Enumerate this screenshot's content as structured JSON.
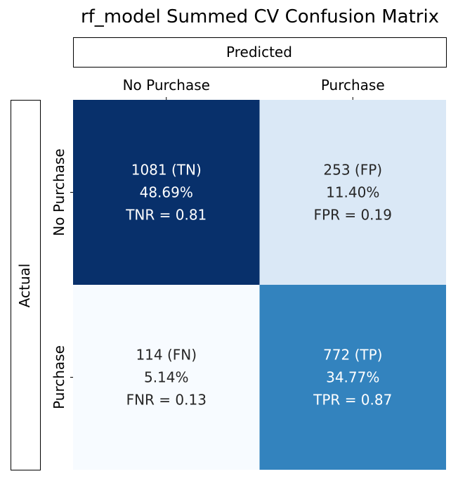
{
  "chart_data": {
    "type": "heatmap",
    "title": "rf_model Summed CV Confusion Matrix",
    "xlabel": "Predicted",
    "ylabel": "Actual",
    "x_categories": [
      "No Purchase",
      "Purchase"
    ],
    "y_categories": [
      "No Purchase",
      "Purchase"
    ],
    "values": [
      [
        1081,
        253
      ],
      [
        114,
        772
      ]
    ],
    "cell_labels": [
      [
        [
          "1081 (TN)",
          "48.69%",
          "TNR = 0.81"
        ],
        [
          "253 (FP)",
          "11.40%",
          "FPR = 0.19"
        ]
      ],
      [
        [
          "114 (FN)",
          "5.14%",
          "FNR = 0.13"
        ],
        [
          "772 (TP)",
          "34.77%",
          "TPR = 0.87"
        ]
      ]
    ],
    "colormap": "Blues",
    "colorbar": false,
    "cell_colors": [
      [
        "#08306b",
        "#dae8f6"
      ],
      [
        "#f7fbff",
        "#3383be"
      ]
    ],
    "text_colors": [
      [
        "#ffffff",
        "#262626"
      ],
      [
        "#262626",
        "#ffffff"
      ]
    ]
  }
}
